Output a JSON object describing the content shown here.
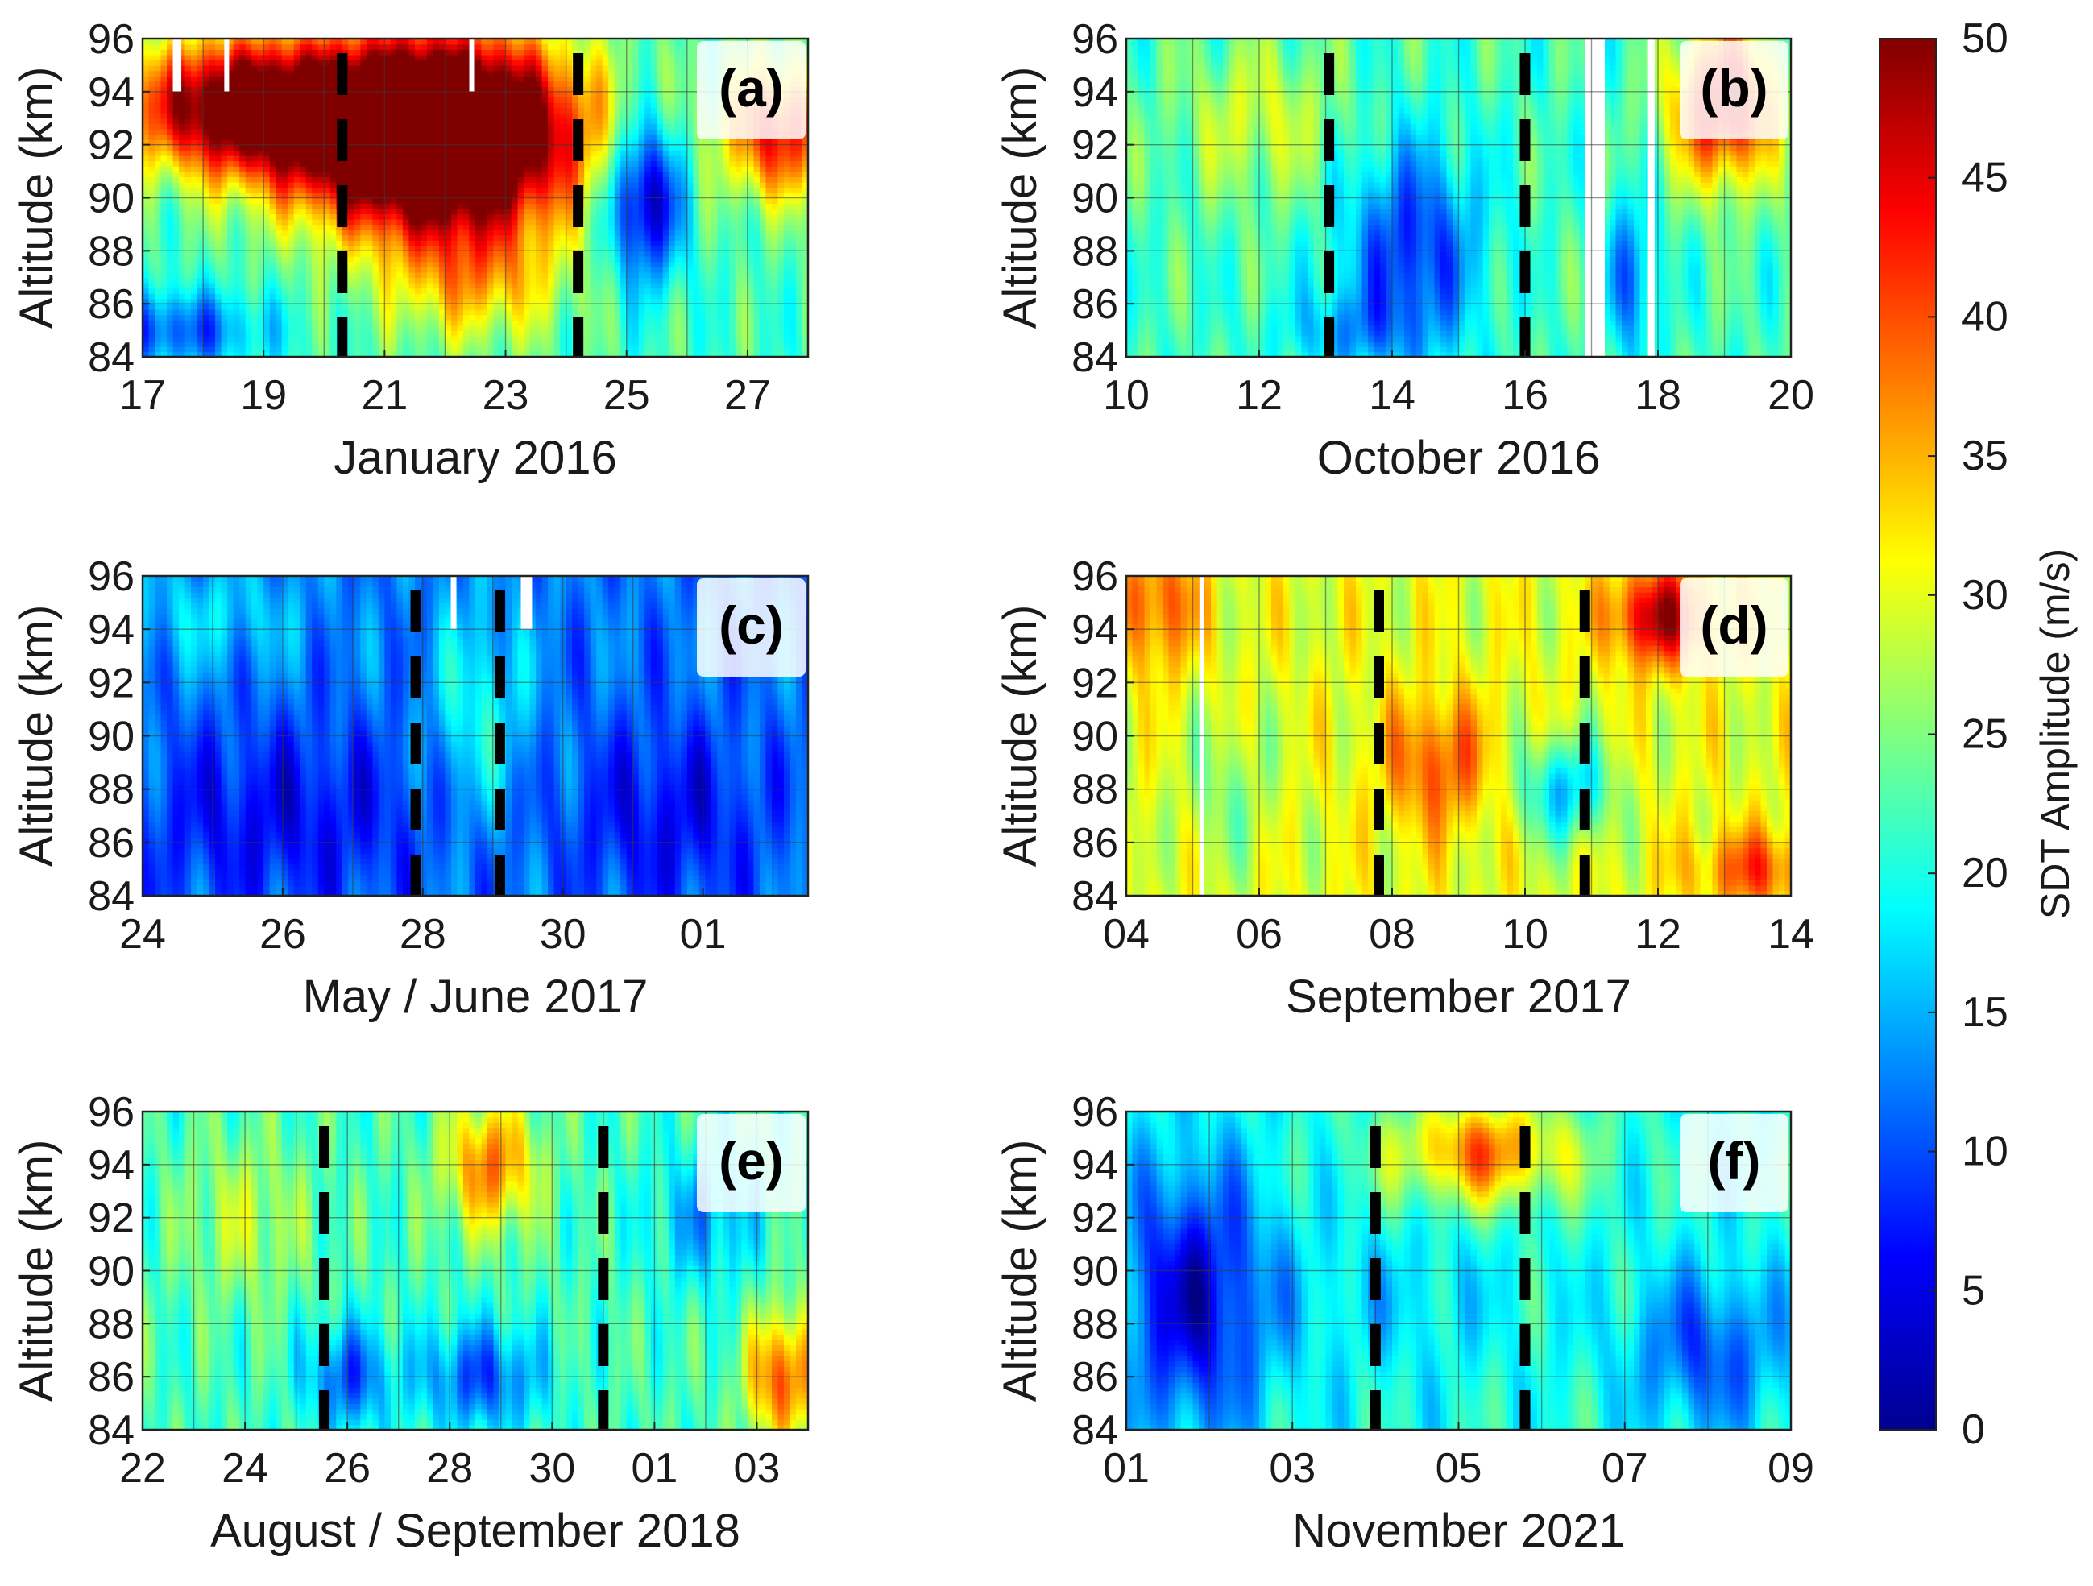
{
  "chart_data": {
    "type": "heatmap",
    "colorbar": {
      "label": "SDT Amplitude (m/s)",
      "range": [
        0,
        50
      ],
      "ticks": [
        "0",
        "5",
        "10",
        "15",
        "20",
        "25",
        "30",
        "35",
        "40",
        "45",
        "50"
      ],
      "colormap": "jet"
    },
    "panels": [
      {
        "label": "(a)",
        "xlabel": "January 2016",
        "ylabel": "Altitude (km)",
        "xlim": [
          17,
          28
        ],
        "ylim": [
          84,
          96
        ],
        "xticks": [
          "17",
          "19",
          "21",
          "23",
          "25",
          "27"
        ],
        "xtick_values": [
          17,
          19,
          21,
          23,
          25,
          27
        ],
        "yticks": [
          "84",
          "86",
          "88",
          "90",
          "92",
          "94",
          "96"
        ],
        "dashed_lines": [
          20.3,
          24.2
        ],
        "gaps": [
          {
            "x": 17.5,
            "w": 0.14,
            "ymin": 94
          },
          {
            "x": 18.35,
            "w": 0.08,
            "ymin": 94
          },
          {
            "x": 22.4,
            "w": 0.08,
            "ymin": 94
          }
        ],
        "blobs": [
          {
            "x": 21.8,
            "y": 92.5,
            "sx": 2.3,
            "sy": 3.5,
            "a": 55
          },
          {
            "x": 18.5,
            "y": 93.5,
            "sx": 1.8,
            "sy": 2.5,
            "a": 30
          },
          {
            "x": 22.5,
            "y": 87,
            "sx": 1.5,
            "sy": 2.5,
            "a": 12
          },
          {
            "x": 25.3,
            "y": 90,
            "sx": 0.6,
            "sy": 3,
            "a": -22
          },
          {
            "x": 27.5,
            "y": 92.5,
            "sx": 0.9,
            "sy": 2.5,
            "a": 22
          },
          {
            "x": 17.5,
            "y": 85,
            "sx": 1.5,
            "sy": 1.5,
            "a": -12
          }
        ],
        "base": 22
      },
      {
        "label": "(b)",
        "xlabel": "October 2016",
        "ylabel": "Altitude (km)",
        "xlim": [
          10,
          20
        ],
        "ylim": [
          84,
          96
        ],
        "xticks": [
          "10",
          "12",
          "14",
          "16",
          "18",
          "20"
        ],
        "xtick_values": [
          10,
          12,
          14,
          16,
          18,
          20
        ],
        "yticks": [
          "84",
          "86",
          "88",
          "90",
          "92",
          "94",
          "96"
        ],
        "dashed_lines": [
          13.05,
          16.0
        ],
        "gaps": [
          {
            "x": 16.9,
            "w": 0.3,
            "ymin": 84
          },
          {
            "x": 17.85,
            "w": 0.1,
            "ymin": 84
          }
        ],
        "blobs": [
          {
            "x": 14.3,
            "y": 88,
            "sx": 1.0,
            "sy": 4,
            "a": -14
          },
          {
            "x": 13.3,
            "y": 85,
            "sx": 1.0,
            "sy": 1.5,
            "a": -6
          },
          {
            "x": 19.0,
            "y": 93.5,
            "sx": 0.8,
            "sy": 3,
            "a": 25
          },
          {
            "x": 12.0,
            "y": 93,
            "sx": 1.2,
            "sy": 3,
            "a": 7
          },
          {
            "x": 17.6,
            "y": 87,
            "sx": 0.4,
            "sy": 3,
            "a": -10
          }
        ],
        "base": 22
      },
      {
        "label": "(c)",
        "xlabel": "May / June 2017",
        "ylabel": "Altitude (km)",
        "xlim": [
          24,
          33.5
        ],
        "ylim": [
          84,
          96
        ],
        "xticks": [
          "24",
          "26",
          "28",
          "30",
          "01"
        ],
        "xtick_values": [
          24,
          26,
          28,
          30,
          32
        ],
        "yticks": [
          "84",
          "86",
          "88",
          "90",
          "92",
          "94",
          "96"
        ],
        "dashed_lines": [
          27.9,
          29.1
        ],
        "gaps": [
          {
            "x": 28.4,
            "w": 0.08,
            "ymin": 94
          },
          {
            "x": 29.4,
            "w": 0.16,
            "ymin": 94
          }
        ],
        "blobs": [
          {
            "x": 26,
            "y": 87,
            "sx": 2.2,
            "sy": 3.5,
            "a": -6
          },
          {
            "x": 31.5,
            "y": 87,
            "sx": 1.4,
            "sy": 3.5,
            "a": -6
          },
          {
            "x": 28.8,
            "y": 91,
            "sx": 0.7,
            "sy": 4,
            "a": 8
          },
          {
            "x": 25,
            "y": 94.5,
            "sx": 1.3,
            "sy": 2,
            "a": 5
          }
        ],
        "base": 12
      },
      {
        "label": "(d)",
        "xlabel": "September 2017",
        "ylabel": "Altitude (km)",
        "xlim": [
          4,
          14
        ],
        "ylim": [
          84,
          96
        ],
        "xticks": [
          "04",
          "06",
          "08",
          "10",
          "12",
          "14"
        ],
        "xtick_values": [
          4,
          6,
          8,
          10,
          12,
          14
        ],
        "yticks": [
          "84",
          "86",
          "88",
          "90",
          "92",
          "94",
          "96"
        ],
        "dashed_lines": [
          7.8,
          10.9
        ],
        "gaps": [
          {
            "x": 5.1,
            "w": 0.07,
            "ymin": 84
          }
        ],
        "blobs": [
          {
            "x": 8.7,
            "y": 89,
            "sx": 0.8,
            "sy": 2.5,
            "a": 10
          },
          {
            "x": 12,
            "y": 94.5,
            "sx": 0.7,
            "sy": 1.8,
            "a": 18
          },
          {
            "x": 10.6,
            "y": 88,
            "sx": 0.7,
            "sy": 2,
            "a": -14
          },
          {
            "x": 13.5,
            "y": 85,
            "sx": 1.0,
            "sy": 1.5,
            "a": 10
          },
          {
            "x": 4.5,
            "y": 95,
            "sx": 0.6,
            "sy": 2.5,
            "a": 10
          },
          {
            "x": 5.5,
            "y": 88,
            "sx": 0.7,
            "sy": 3,
            "a": -5
          }
        ],
        "base": 30
      },
      {
        "label": "(e)",
        "xlabel": "August / September 2018",
        "ylabel": "Altitude (km)",
        "xlim": [
          22,
          35
        ],
        "ylim": [
          84,
          96
        ],
        "xticks": [
          "22",
          "24",
          "26",
          "28",
          "30",
          "01",
          "03"
        ],
        "xtick_values": [
          22,
          24,
          26,
          28,
          30,
          32,
          34
        ],
        "yticks": [
          "84",
          "86",
          "88",
          "90",
          "92",
          "94",
          "96"
        ],
        "dashed_lines": [
          25.55,
          31.0
        ],
        "gaps": [],
        "blobs": [
          {
            "x": 28.8,
            "y": 94,
            "sx": 0.9,
            "sy": 2.5,
            "a": 16
          },
          {
            "x": 26,
            "y": 86,
            "sx": 0.8,
            "sy": 2,
            "a": -12
          },
          {
            "x": 28.6,
            "y": 86,
            "sx": 1.2,
            "sy": 2,
            "a": -12
          },
          {
            "x": 34.5,
            "y": 86,
            "sx": 0.7,
            "sy": 2.5,
            "a": 18
          },
          {
            "x": 33,
            "y": 92,
            "sx": 1.0,
            "sy": 2.5,
            "a": -8
          },
          {
            "x": 24,
            "y": 92,
            "sx": 1.2,
            "sy": 3,
            "a": 6
          }
        ],
        "base": 22
      },
      {
        "label": "(f)",
        "xlabel": "November 2021",
        "ylabel": "Altitude (km)",
        "xlim": [
          1,
          9
        ],
        "ylim": [
          84,
          96
        ],
        "xticks": [
          "01",
          "03",
          "05",
          "07",
          "09"
        ],
        "xtick_values": [
          1,
          3,
          5,
          7,
          9
        ],
        "yticks": [
          "84",
          "86",
          "88",
          "90",
          "92",
          "94",
          "96"
        ],
        "dashed_lines": [
          4.0,
          5.8
        ],
        "gaps": [],
        "blobs": [
          {
            "x": 1.8,
            "y": 89,
            "sx": 0.9,
            "sy": 5,
            "a": -16
          },
          {
            "x": 5.3,
            "y": 94.5,
            "sx": 1.1,
            "sy": 2,
            "a": 18
          },
          {
            "x": 8,
            "y": 87,
            "sx": 0.9,
            "sy": 3,
            "a": -10
          },
          {
            "x": 4.2,
            "y": 89,
            "sx": 1.3,
            "sy": 3,
            "a": -3
          }
        ],
        "base": 20
      }
    ]
  }
}
